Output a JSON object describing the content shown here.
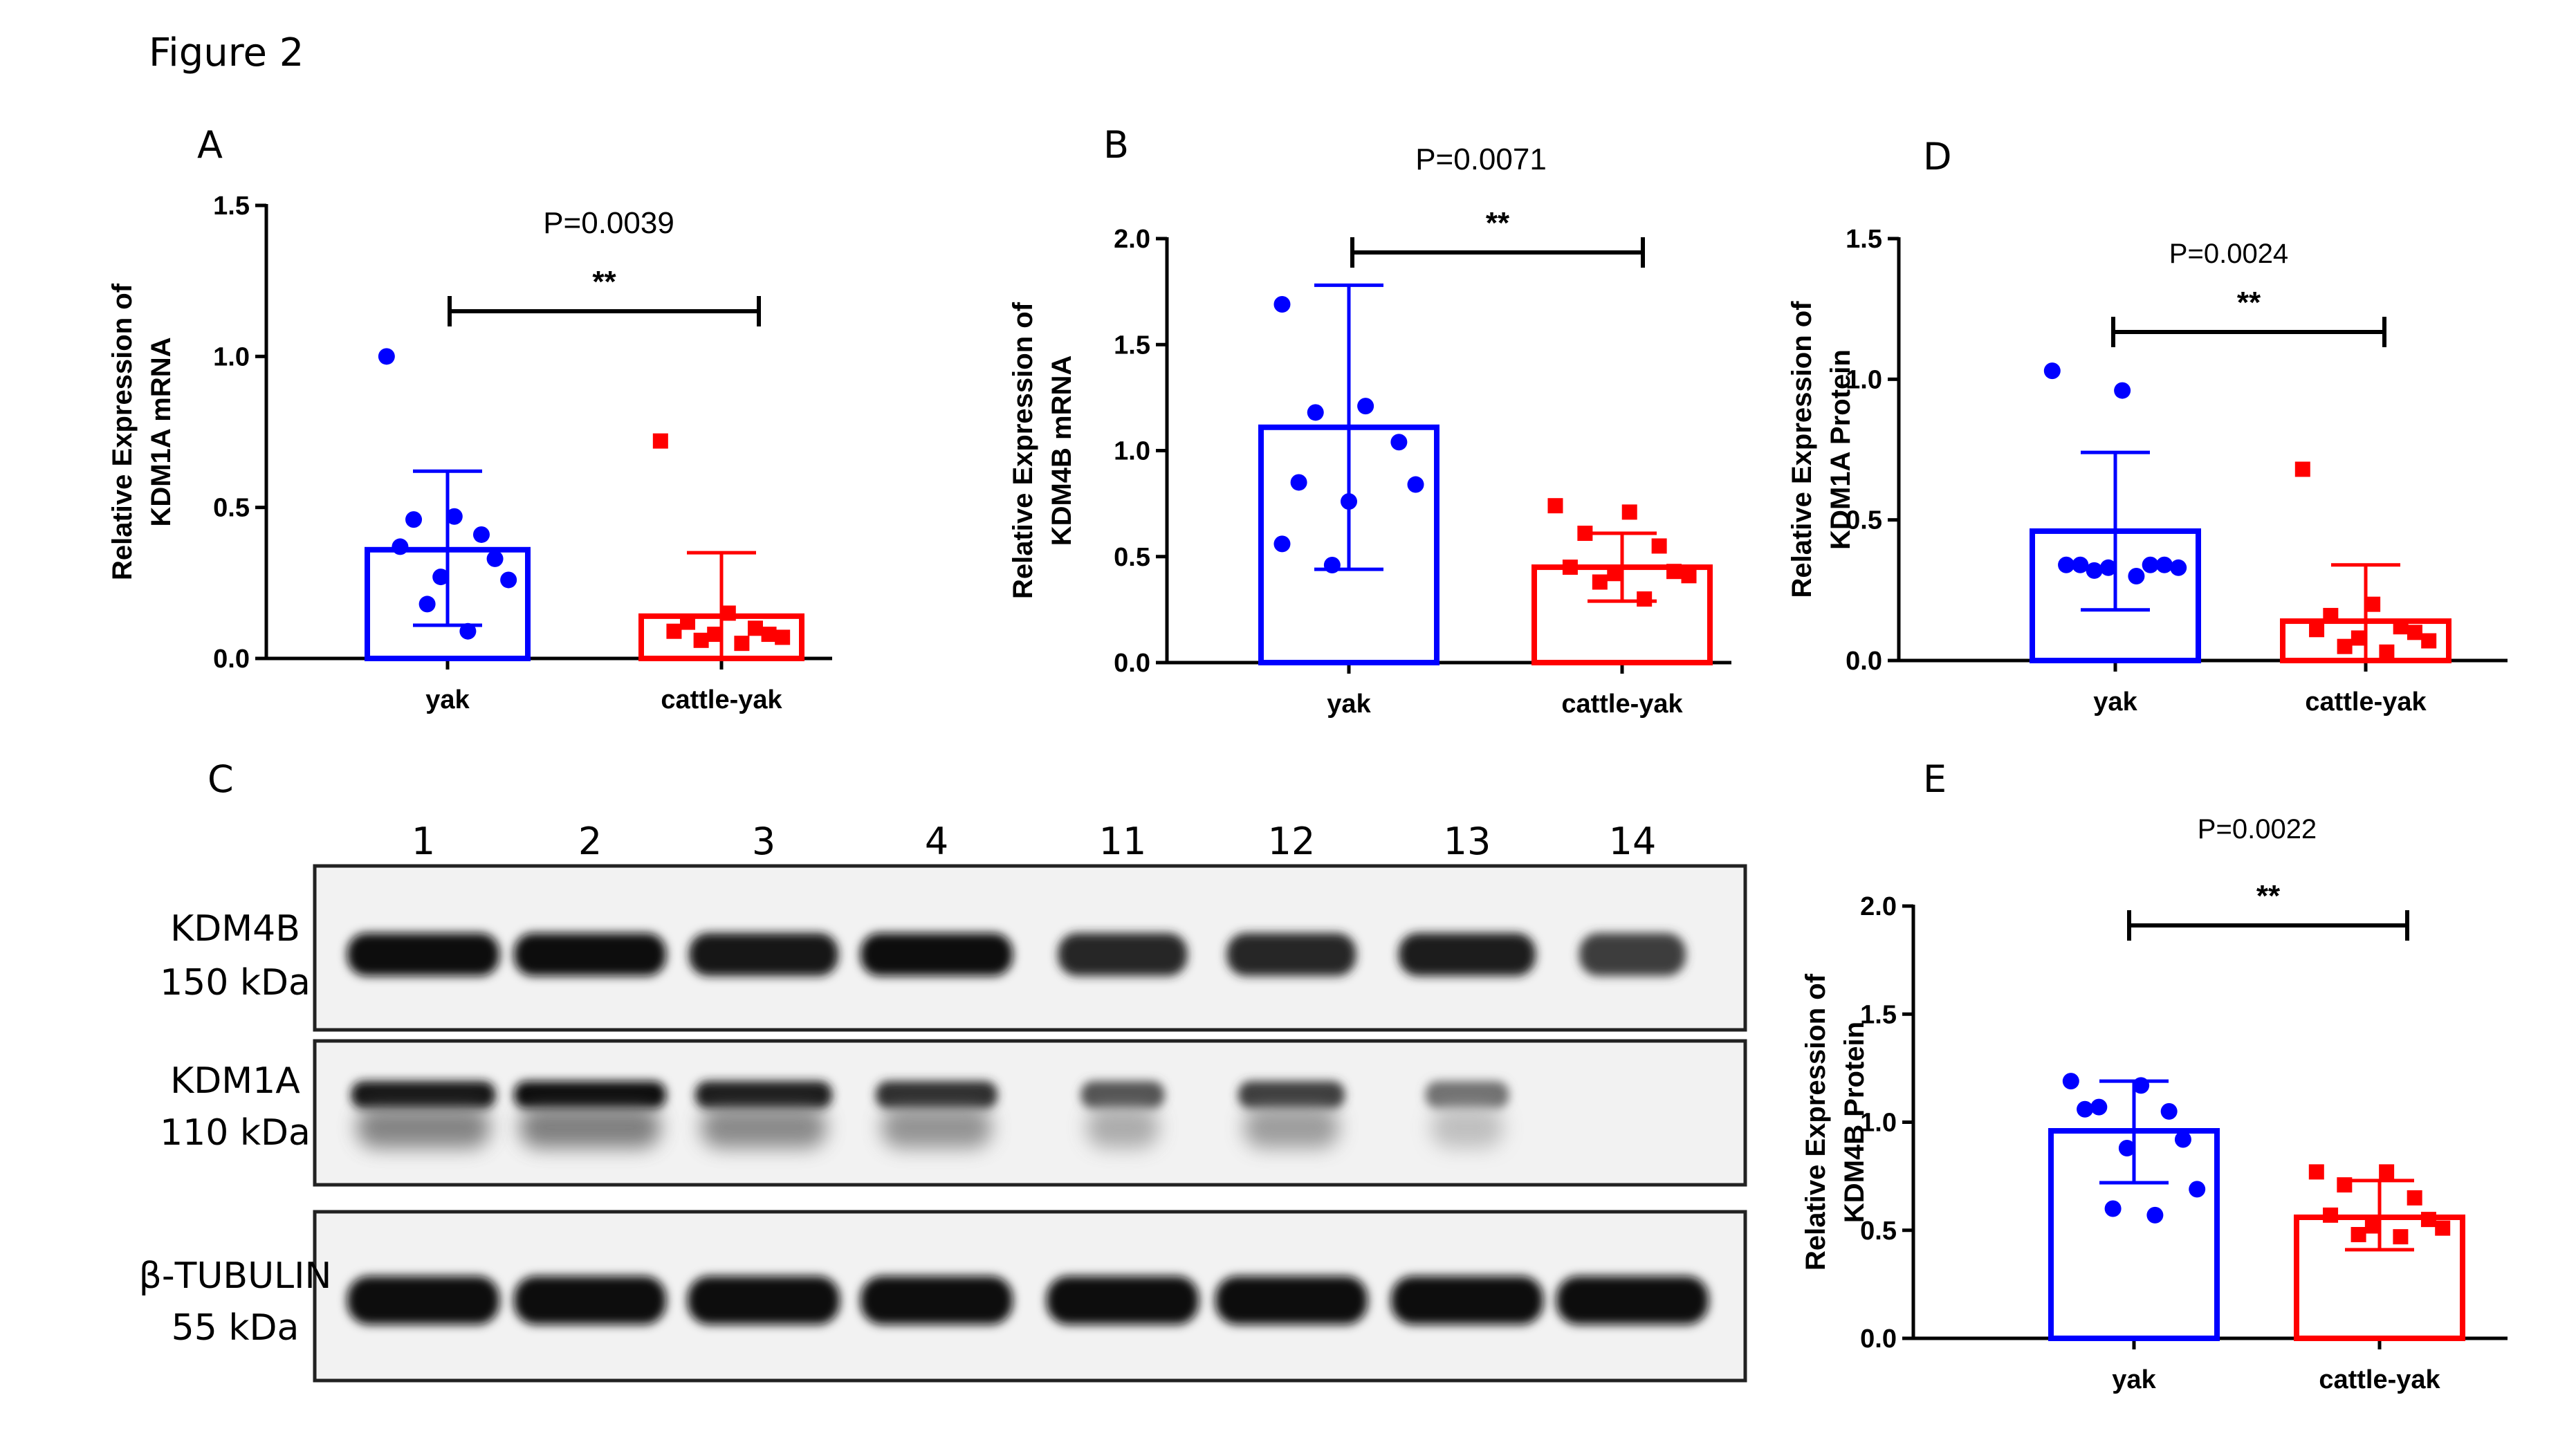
{
  "figure_title": "Figure 2",
  "colors": {
    "yak": "#0000ff",
    "cattle_yak": "#ff0000",
    "axis": "#000000"
  },
  "chart_data": [
    {
      "panel": "A",
      "type": "bar",
      "ylabel": [
        "Relative Expression of",
        "KDM1A mRNA"
      ],
      "categories": [
        "yak",
        "cattle-yak"
      ],
      "ylim": [
        0,
        1.5
      ],
      "yticks": [
        "0.0",
        "0.5",
        "1.0",
        "1.5"
      ],
      "ytick_values": [
        0,
        0.5,
        1.0,
        1.5
      ],
      "means": [
        0.36,
        0.14
      ],
      "sd_upper": [
        0.62,
        0.35
      ],
      "sd_lower": [
        0.11,
        0.0
      ],
      "points": [
        [
          1.0,
          0.47,
          0.46,
          0.41,
          0.37,
          0.33,
          0.27,
          0.26,
          0.18,
          0.09
        ],
        [
          0.72,
          0.15,
          0.12,
          0.1,
          0.09,
          0.08,
          0.08,
          0.07,
          0.06,
          0.05
        ]
      ],
      "p_label": "P=0.0039",
      "sig_label": "**"
    },
    {
      "panel": "B",
      "type": "bar",
      "ylabel": [
        "Relative Expression of",
        "KDM4B mRNA"
      ],
      "categories": [
        "yak",
        "cattle-yak"
      ],
      "ylim": [
        0,
        2.0
      ],
      "yticks": [
        "0.0",
        "0.5",
        "1.0",
        "1.5",
        "2.0"
      ],
      "ytick_values": [
        0,
        0.5,
        1.0,
        1.5,
        2.0
      ],
      "means": [
        1.11,
        0.45
      ],
      "sd_upper": [
        1.78,
        0.61
      ],
      "sd_lower": [
        0.44,
        0.29
      ],
      "points": [
        [
          1.69,
          1.21,
          1.18,
          1.04,
          0.85,
          0.84,
          0.76,
          0.56,
          0.46
        ],
        [
          0.74,
          0.71,
          0.61,
          0.55,
          0.45,
          0.43,
          0.42,
          0.41,
          0.38,
          0.3
        ]
      ],
      "p_label": "P=0.0071",
      "sig_label": "**"
    },
    {
      "panel": "D",
      "type": "bar",
      "ylabel": [
        "Relative Expression of",
        "KDM1A Protein"
      ],
      "categories": [
        "yak",
        "cattle-yak"
      ],
      "ylim": [
        0,
        1.5
      ],
      "yticks": [
        "0.0",
        "0.5",
        "1.0",
        "1.5"
      ],
      "ytick_values": [
        0,
        0.5,
        1.0,
        1.5
      ],
      "means": [
        0.46,
        0.14
      ],
      "sd_upper": [
        0.74,
        0.34
      ],
      "sd_lower": [
        0.18,
        0.0
      ],
      "points": [
        [
          1.03,
          0.96,
          0.34,
          0.34,
          0.34,
          0.34,
          0.33,
          0.33,
          0.32,
          0.3
        ],
        [
          0.68,
          0.2,
          0.16,
          0.12,
          0.11,
          0.1,
          0.08,
          0.07,
          0.05,
          0.03
        ]
      ],
      "p_label": "P=0.0024",
      "sig_label": "**"
    },
    {
      "panel": "E",
      "type": "bar",
      "ylabel": [
        "Relative Expression of",
        "KDM4B Protein"
      ],
      "categories": [
        "yak",
        "cattle-yak"
      ],
      "ylim": [
        0,
        2.0
      ],
      "yticks": [
        "0.0",
        "0.5",
        "1.0",
        "1.5",
        "2.0"
      ],
      "ytick_values": [
        0,
        0.5,
        1.0,
        1.5,
        2.0
      ],
      "means": [
        0.96,
        0.56
      ],
      "sd_upper": [
        1.19,
        0.73
      ],
      "sd_lower": [
        0.72,
        0.41
      ],
      "points": [
        [
          1.19,
          1.17,
          1.07,
          1.05,
          1.06,
          0.92,
          0.88,
          0.69,
          0.6,
          0.57
        ],
        [
          0.77,
          0.77,
          0.71,
          0.65,
          0.57,
          0.55,
          0.52,
          0.51,
          0.48,
          0.47
        ]
      ],
      "p_label": "P=0.0022",
      "sig_label": "**"
    }
  ],
  "blot": {
    "panel": "C",
    "lanes": [
      "1",
      "2",
      "3",
      "4",
      "11",
      "12",
      "13",
      "14"
    ],
    "rows": [
      {
        "name": "KDM4B",
        "size": "150 kDa",
        "intensity": [
          1.0,
          1.0,
          0.98,
          1.0,
          0.85,
          0.85,
          0.9,
          0.7
        ]
      },
      {
        "name": "KDM1A",
        "size": "110 kDa",
        "intensity": [
          0.95,
          1.0,
          0.9,
          0.8,
          0.55,
          0.7,
          0.35,
          0.05
        ]
      },
      {
        "name": "β-TUBULIN",
        "size": "55 kDa",
        "intensity": [
          1.0,
          1.0,
          1.0,
          1.0,
          1.0,
          1.0,
          1.0,
          1.0
        ]
      }
    ]
  }
}
